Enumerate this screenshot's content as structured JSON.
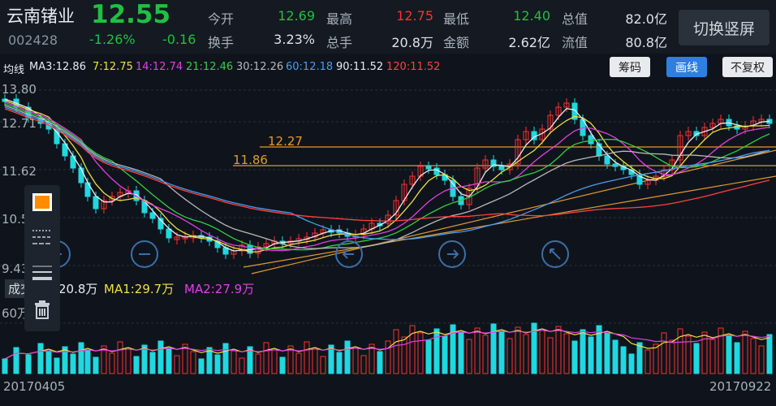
{
  "header": {
    "stock_name": "云南锗业",
    "price": "12.55",
    "code": "002428",
    "change_pct": "-1.26%",
    "change": "-0.16",
    "stats": [
      {
        "label": "今开",
        "value": "12.69",
        "color": "green"
      },
      {
        "label": "最高",
        "value": "12.75",
        "color": "red"
      },
      {
        "label": "最低",
        "value": "12.40",
        "color": "green"
      },
      {
        "label": "总值",
        "value": "82.0亿",
        "color": "white"
      },
      {
        "label": "换手",
        "value": "3.23%",
        "color": "white"
      },
      {
        "label": "总手",
        "value": "20.8万",
        "color": "white"
      },
      {
        "label": "金额",
        "value": "2.62亿",
        "color": "white"
      },
      {
        "label": "流值",
        "value": "80.8亿",
        "color": "white"
      }
    ],
    "switch_button": "切换竖屏"
  },
  "ma_bar": {
    "title": "均线",
    "items": [
      {
        "text": "MA3:12.86",
        "color": "#e8ebee"
      },
      {
        "text": "7:12.75",
        "color": "#f0e040"
      },
      {
        "text": "14:12.74",
        "color": "#e040e0"
      },
      {
        "text": "21:12.46",
        "color": "#30d040"
      },
      {
        "text": "30:12.26",
        "color": "#b8b8b8"
      },
      {
        "text": "60:12.18",
        "color": "#4a9cf0"
      },
      {
        "text": "90:11.52",
        "color": "#e8ebee"
      },
      {
        "text": "120:11.52",
        "color": "#ff4040"
      }
    ],
    "buttons": {
      "chips": "筹码",
      "draw": "画线",
      "adjust": "不复权"
    }
  },
  "price_axis": [
    "13.80",
    "12.71",
    "11.62",
    "10.52",
    "9.43"
  ],
  "trendline_labels": [
    "12.27",
    "11.86"
  ],
  "volume_bar": {
    "label": "成交",
    "vol": "20.8万",
    "ma1": "MA1:29.7万",
    "ma2": "MA2:27.9万",
    "axis": "60万"
  },
  "dates": {
    "start": "20170405",
    "end": "20170922"
  },
  "colors": {
    "up": "#ff3030",
    "down": "#20d8e0",
    "accent": "#2f7fe0",
    "trend": "#e09a30"
  },
  "tool_panel": [
    "color-swatch-icon",
    "line-style-icon",
    "line-width-icon",
    "trash-icon"
  ]
}
